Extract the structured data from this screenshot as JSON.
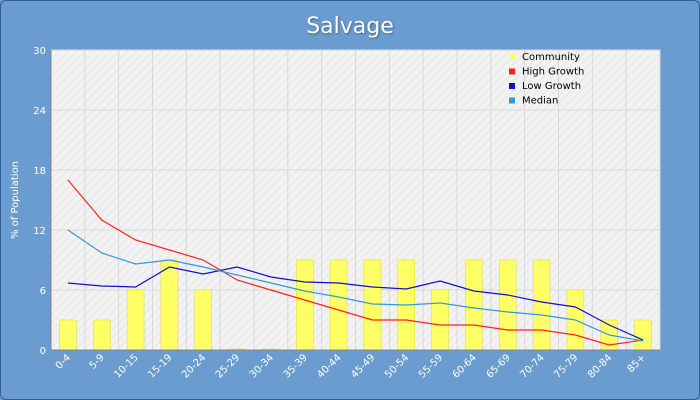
{
  "colors": {
    "background": "#6a9ccf",
    "plot_background": "#f0f0f0",
    "grid": "#d8d8d8",
    "community": "#ffff66",
    "high_growth": "#ff2020",
    "low_growth": "#1010cc",
    "median": "#3399dd"
  },
  "chart_data": {
    "type": "bar",
    "title": "Salvage",
    "xlabel": "",
    "ylabel": "% of Population",
    "ylim": [
      0,
      30
    ],
    "yticks": [
      "0",
      "6",
      "12",
      "18",
      "24",
      "30"
    ],
    "grid": true,
    "legend_position": "top-right",
    "categories": [
      "0-4",
      "5-9",
      "10-15",
      "15-19",
      "20-24",
      "25-29",
      "30-34",
      "35-39",
      "40-44",
      "45-49",
      "50-54",
      "55-59",
      "60-64",
      "65-69",
      "70-74",
      "75-79",
      "80-84",
      "85+"
    ],
    "series": [
      {
        "name": "Community",
        "type": "bar",
        "values": [
          3,
          3,
          6,
          9,
          6,
          0.1,
          0.1,
          9,
          9,
          9,
          9,
          6,
          9,
          9,
          9,
          6,
          3,
          3
        ]
      },
      {
        "name": "High Growth",
        "type": "line",
        "values": [
          17,
          13,
          11,
          10,
          9,
          7,
          6,
          5,
          4,
          3,
          3,
          2.5,
          2.5,
          2,
          2,
          1.5,
          0.5,
          1
        ]
      },
      {
        "name": "Low Growth",
        "type": "line",
        "values": [
          6.7,
          6.4,
          6.3,
          8.3,
          7.6,
          8.3,
          7.3,
          6.8,
          6.7,
          6.3,
          6.1,
          6.9,
          5.9,
          5.5,
          4.8,
          4.3,
          2.5,
          1
        ]
      },
      {
        "name": "Median",
        "type": "line",
        "values": [
          12,
          9.7,
          8.6,
          9,
          8.3,
          7.5,
          6.7,
          5.9,
          5.3,
          4.6,
          4.5,
          4.7,
          4.2,
          3.8,
          3.5,
          3,
          1.5,
          0.9
        ]
      }
    ]
  }
}
